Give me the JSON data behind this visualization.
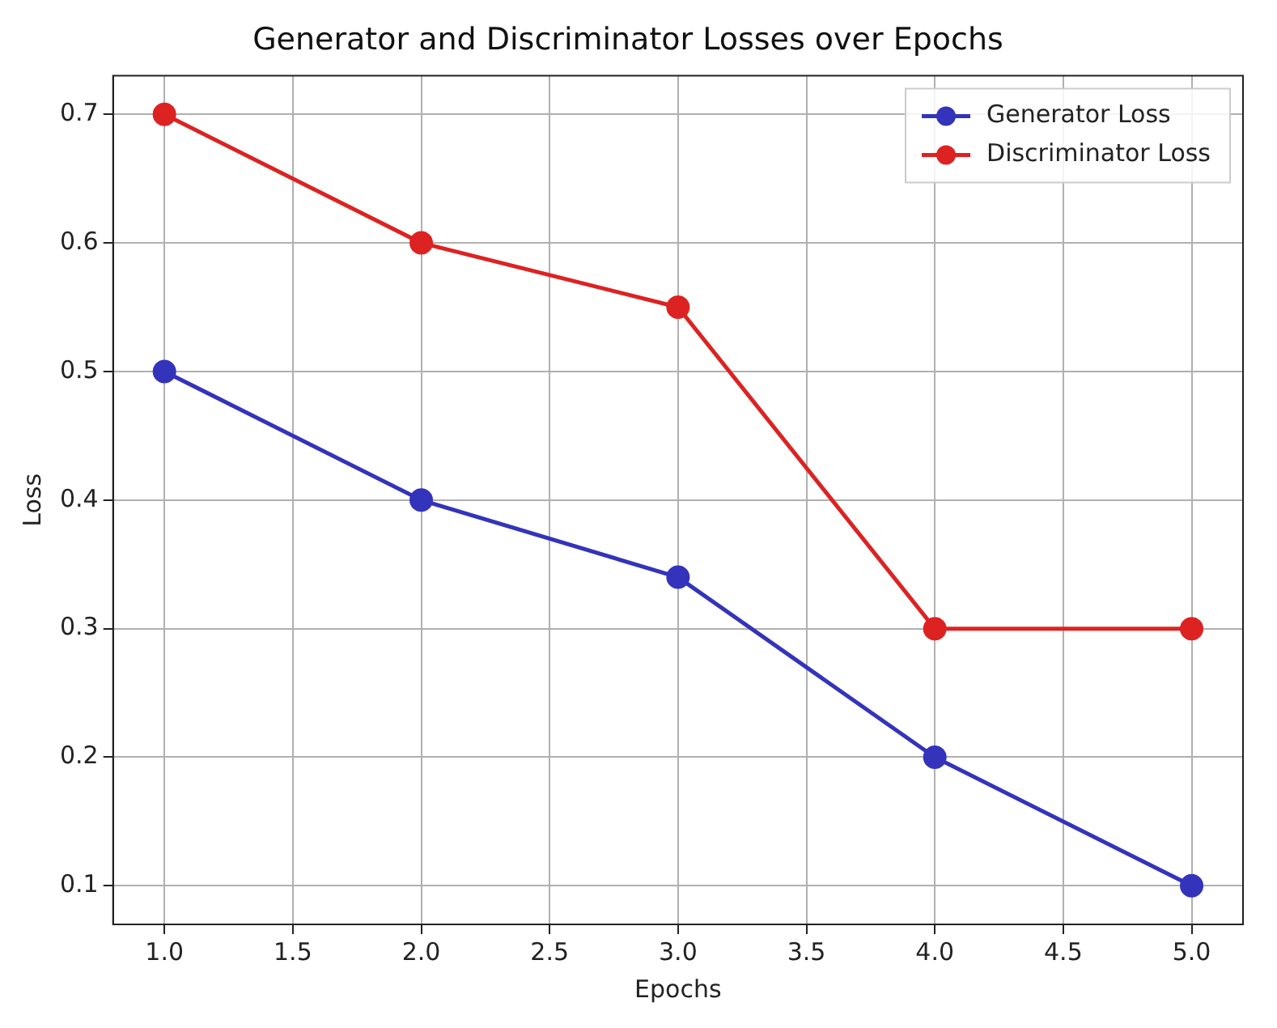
{
  "chart_data": {
    "type": "line",
    "title": "Generator and Discriminator Losses over Epochs",
    "xlabel": "Epochs",
    "ylabel": "Loss",
    "x": [
      1,
      2,
      3,
      4,
      5
    ],
    "series": [
      {
        "name": "Generator Loss",
        "color": "#3333bb",
        "values": [
          0.5,
          0.4,
          0.34,
          0.2,
          0.1
        ]
      },
      {
        "name": "Discriminator Loss",
        "color": "#dd2222",
        "values": [
          0.7,
          0.6,
          0.55,
          0.3,
          0.3
        ]
      }
    ],
    "xlim": [
      0.8,
      5.2
    ],
    "xticks": [
      {
        "value": 1,
        "label": "1.0"
      },
      {
        "value": 1.5,
        "label": "1.5"
      },
      {
        "value": 2,
        "label": "2.0"
      },
      {
        "value": 2.5,
        "label": "2.5"
      },
      {
        "value": 3,
        "label": "3.0"
      },
      {
        "value": 3.5,
        "label": "3.5"
      },
      {
        "value": 4,
        "label": "4.0"
      },
      {
        "value": 4.5,
        "label": "4.5"
      },
      {
        "value": 5,
        "label": "5.0"
      }
    ],
    "ylim": [
      0.07,
      0.73
    ],
    "yticks": [
      0.1,
      0.2,
      0.3,
      0.4,
      0.5,
      0.6,
      0.7
    ],
    "grid": true,
    "legend": "top right",
    "marker": "circle",
    "line_style": "solid"
  }
}
